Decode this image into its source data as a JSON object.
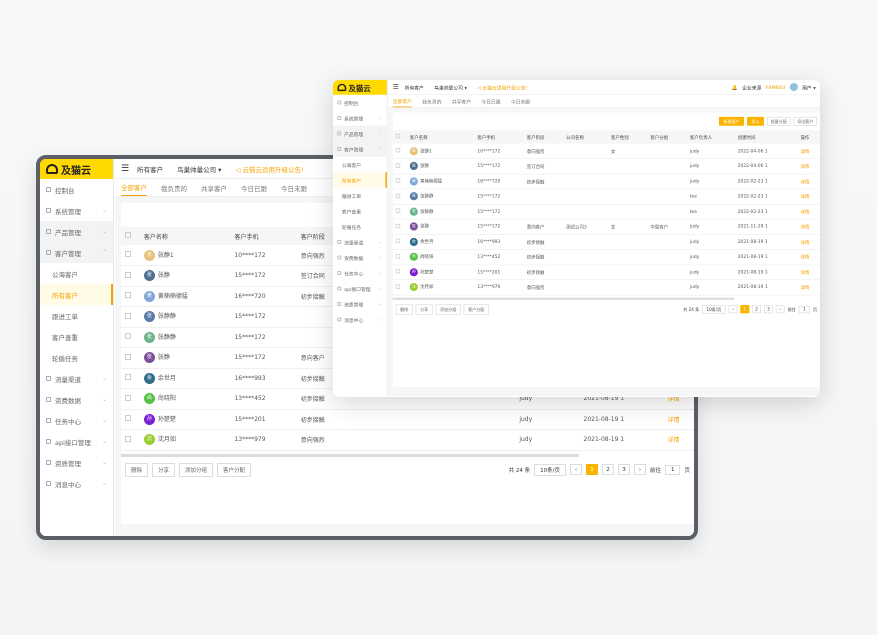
{
  "brand": {
    "name": "及猫云",
    "accent": "#f5a300",
    "logo_yellow": "#ffd900"
  },
  "topbar": {
    "menu_icon": "hamburger-icon",
    "nav": "所有客户",
    "company": "鸟巢帅量公司 ▾",
    "notice": "◁ 云猫云适用升级公告!",
    "company_tag": "企业来源",
    "company_code": "F8MB43",
    "user": "用户 ▾",
    "bell_icon": "bell-icon"
  },
  "sidebar": [
    {
      "label": "控制台",
      "icon": "dashboard-icon",
      "type": "item"
    },
    {
      "label": "系统管理",
      "icon": "settings-icon",
      "type": "group"
    },
    {
      "label": "产品管理",
      "icon": "product-icon",
      "type": "group"
    },
    {
      "label": "客户管理",
      "icon": "customer-icon",
      "type": "open"
    },
    {
      "label": "公海客户",
      "type": "sub"
    },
    {
      "label": "所有客户",
      "type": "sub-active"
    },
    {
      "label": "跟进工单",
      "type": "sub"
    },
    {
      "label": "客户查重",
      "type": "sub"
    },
    {
      "label": "轮循任务",
      "type": "sub"
    },
    {
      "label": "流量渠道",
      "icon": "channel-icon",
      "type": "group"
    },
    {
      "label": "资费数据",
      "icon": "fee-icon",
      "type": "group"
    },
    {
      "label": "任务中心",
      "icon": "task-icon",
      "type": "group"
    },
    {
      "label": "api接口管理",
      "icon": "api-icon",
      "type": "group"
    },
    {
      "label": "资质管理",
      "icon": "license-icon",
      "type": "group"
    },
    {
      "label": "消息中心",
      "icon": "message-icon",
      "type": "group"
    }
  ],
  "tabs": [
    "全部客户",
    "我负责的",
    "共享客户",
    "今日已跟",
    "今日未跟"
  ],
  "actions": {
    "add": "新建客户",
    "import": "导入",
    "assign": "批量分配",
    "export": "导出客户"
  },
  "table": {
    "headers": [
      "客户名称",
      "客户手机",
      "客户阶段",
      "公司名称",
      "客户性别",
      "客户分组",
      "客户负责人",
      "创建时间",
      "操作"
    ],
    "rows": [
      {
        "name": "张静1",
        "color": "#e6c27a",
        "phone": "10****172",
        "stage": "意向强烈",
        "company": "",
        "gender": "女",
        "group": "",
        "owner": "judy",
        "created": "2022-04-06 1",
        "op": "详情"
      },
      {
        "name": "张静",
        "color": "#4f6f8f",
        "phone": "15****172",
        "stage": "签订合同",
        "company": "",
        "gender": "",
        "group": "",
        "owner": "judy",
        "created": "2022-04-06 1",
        "op": "详情"
      },
      {
        "name": "黄楠楠德猛",
        "color": "#7fa8d8",
        "phone": "16****720",
        "stage": "初步接触",
        "company": "",
        "gender": "",
        "group": "",
        "owner": "judy",
        "created": "2022-02-23 1",
        "op": "详情"
      },
      {
        "name": "张静静",
        "color": "#5b7aa8",
        "phone": "15****172",
        "stage": "",
        "company": "",
        "gender": "",
        "group": "",
        "owner": "tee",
        "created": "2022-02-23 1",
        "op": "详情"
      },
      {
        "name": "张静静",
        "color": "#6ab48a",
        "phone": "15****172",
        "stage": "",
        "company": "",
        "gender": "",
        "group": "",
        "owner": "tee",
        "created": "2022-02-23 1",
        "op": "详情"
      },
      {
        "name": "张静",
        "color": "#7b4f9a",
        "phone": "15****172",
        "stage": "意向客户",
        "company": "测试公司3",
        "gender": "女",
        "group": "中型客户",
        "owner": "judy",
        "created": "2021-11-29 1",
        "op": "详情"
      },
      {
        "name": "余世月",
        "color": "#2e6e88",
        "phone": "16****993",
        "stage": "初步接触",
        "company": "",
        "gender": "",
        "group": "",
        "owner": "judy",
        "created": "2021-08-19 1",
        "op": "详情"
      },
      {
        "name": "尚晓阳",
        "color": "#55c244",
        "phone": "13****452",
        "stage": "初步接触",
        "company": "",
        "gender": "",
        "group": "",
        "owner": "judy",
        "created": "2021-08-19 1",
        "op": "详情"
      },
      {
        "name": "孙楚楚",
        "color": "#7a1fd1",
        "phone": "15****201",
        "stage": "初步接触",
        "company": "",
        "gender": "",
        "group": "",
        "owner": "judy",
        "created": "2021-08-19 1",
        "op": "详情"
      },
      {
        "name": "沈月如",
        "color": "#9acd32",
        "phone": "13****979",
        "stage": "意向强烈",
        "company": "",
        "gender": "",
        "group": "",
        "owner": "judy",
        "created": "2021-08-19 1",
        "op": "详情"
      }
    ]
  },
  "footer": {
    "buttons": [
      "删除",
      "分享",
      "添加分组",
      "客户分配"
    ],
    "total": "共 24 条",
    "per_page": "10条/页",
    "pages": [
      "1",
      "2",
      "3"
    ],
    "current_page": "1",
    "goto_label": "前往",
    "goto_value": "1",
    "goto_suffix": "页"
  }
}
